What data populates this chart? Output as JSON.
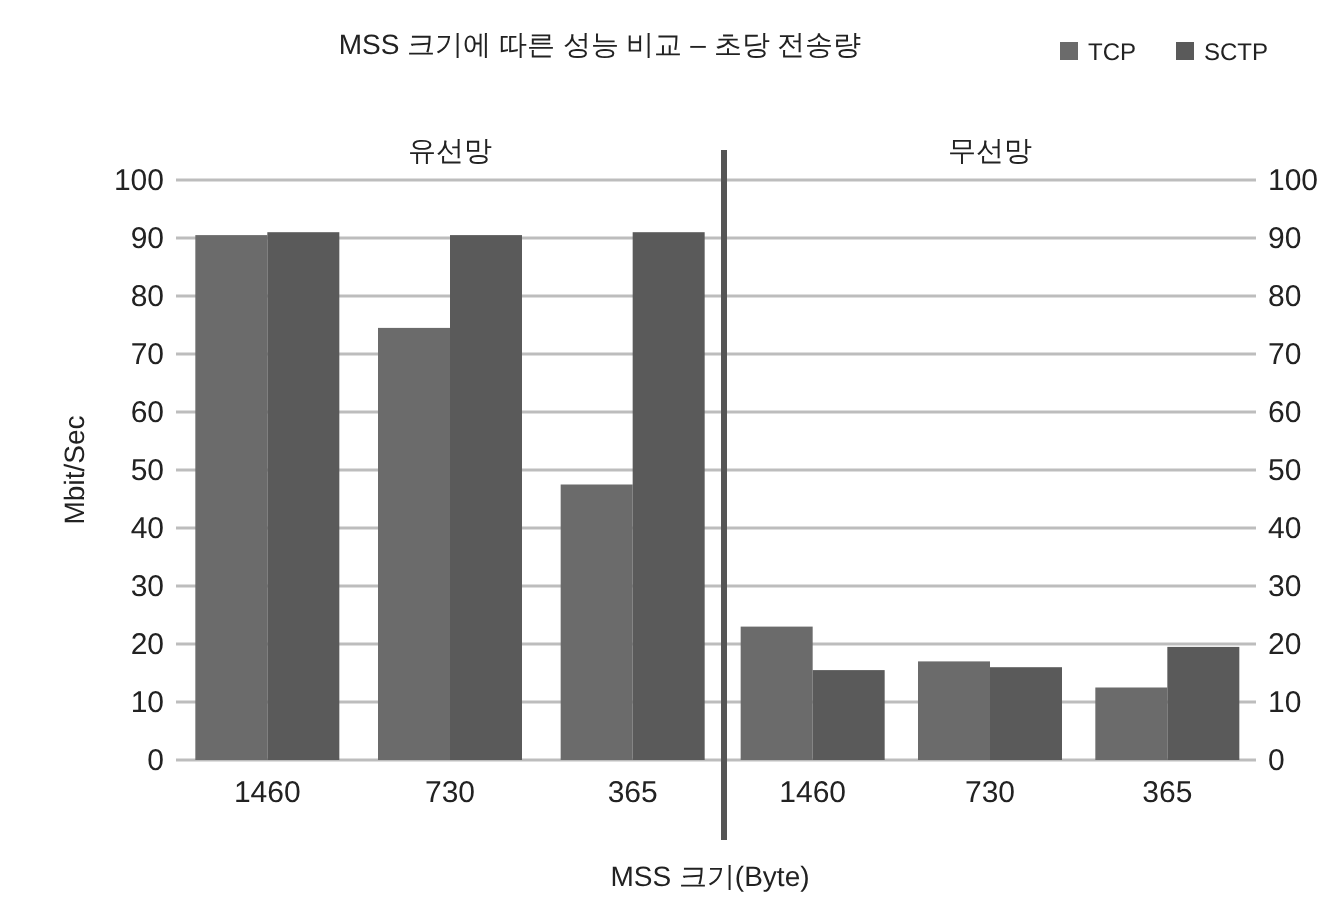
{
  "chart_data": [
    {
      "type": "bar",
      "title": "MSS 크기에 따른 성능 비교 – 초당 전송량",
      "subtitle": "유선망",
      "ylabel": "Mbit/Sec",
      "categories": [
        "1460",
        "730",
        "365"
      ],
      "series": [
        {
          "color": "#6b6b6b",
          "values": [
            90.5,
            74.5,
            47.5
          ]
        },
        {
          "color": "#5a5a5a",
          "values": [
            91,
            90.5,
            91
          ]
        }
      ],
      "ylim": [
        0,
        100
      ],
      "yticks": [
        0,
        10,
        20,
        30,
        40,
        50,
        60,
        70,
        80,
        90,
        100
      ],
      "grid": "y"
    },
    {
      "type": "bar",
      "subtitle": "무선망",
      "xlabel": "MSS 크기(Byte)",
      "categories": [
        "1460",
        "730",
        "365"
      ],
      "series": [
        {
          "name": "TCP",
          "color": "#6b6b6b",
          "values": [
            23,
            17,
            12.5
          ]
        },
        {
          "name": "SCTP",
          "color": "#5a5a5a",
          "values": [
            15.5,
            16,
            19.5
          ]
        }
      ],
      "ylim": [
        0,
        100
      ],
      "yticks": [
        0,
        10,
        20,
        30,
        40,
        50,
        60,
        70,
        80,
        90,
        100
      ],
      "grid": "y",
      "legend": "top right"
    }
  ]
}
